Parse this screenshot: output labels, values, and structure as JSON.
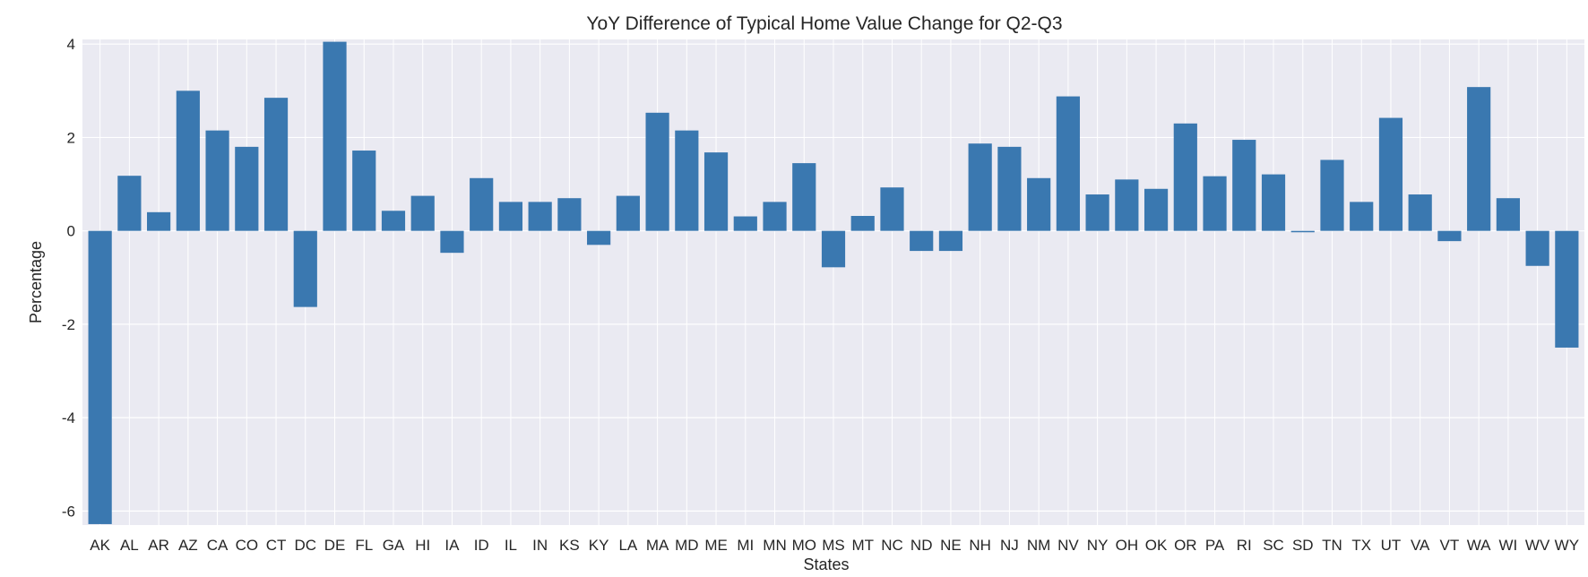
{
  "chart_data": {
    "type": "bar",
    "title": "YoY Difference of Typical Home Value Change for Q2-Q3",
    "xlabel": "States",
    "ylabel": "Percentage",
    "ylim": [
      -6.3,
      4.1
    ],
    "yticks": [
      -6,
      -4,
      -2,
      0,
      2,
      4
    ],
    "ytick_labels": [
      "-6",
      "-4",
      "-2",
      "0",
      "2",
      "4"
    ],
    "grid": true,
    "legend": "none",
    "bar_color": "#3a78b0",
    "background_color": "#eaeaf2",
    "grid_color": "#ffffff",
    "categories": [
      "AK",
      "AL",
      "AR",
      "AZ",
      "CA",
      "CO",
      "CT",
      "DC",
      "DE",
      "FL",
      "GA",
      "HI",
      "IA",
      "ID",
      "IL",
      "IN",
      "KS",
      "KY",
      "LA",
      "MA",
      "MD",
      "ME",
      "MI",
      "MN",
      "MO",
      "MS",
      "MT",
      "NC",
      "ND",
      "NE",
      "NH",
      "NJ",
      "NM",
      "NV",
      "NY",
      "OH",
      "OK",
      "OR",
      "PA",
      "RI",
      "SC",
      "SD",
      "TN",
      "TX",
      "UT",
      "VA",
      "VT",
      "WA",
      "WI",
      "WV",
      "WY"
    ],
    "values": [
      -6.28,
      1.18,
      0.4,
      3.0,
      2.15,
      1.8,
      2.85,
      -1.63,
      4.05,
      1.72,
      0.43,
      0.75,
      -0.47,
      1.13,
      0.62,
      0.62,
      0.7,
      -0.3,
      0.75,
      2.53,
      2.15,
      1.68,
      0.31,
      0.62,
      1.45,
      -0.78,
      0.32,
      0.93,
      -0.43,
      -0.43,
      1.87,
      1.8,
      1.13,
      2.88,
      0.78,
      1.1,
      0.9,
      2.3,
      1.17,
      1.95,
      1.21,
      -0.03,
      1.52,
      0.62,
      2.42,
      0.78,
      -0.22,
      3.08,
      0.7,
      -0.75,
      -2.5
    ]
  }
}
